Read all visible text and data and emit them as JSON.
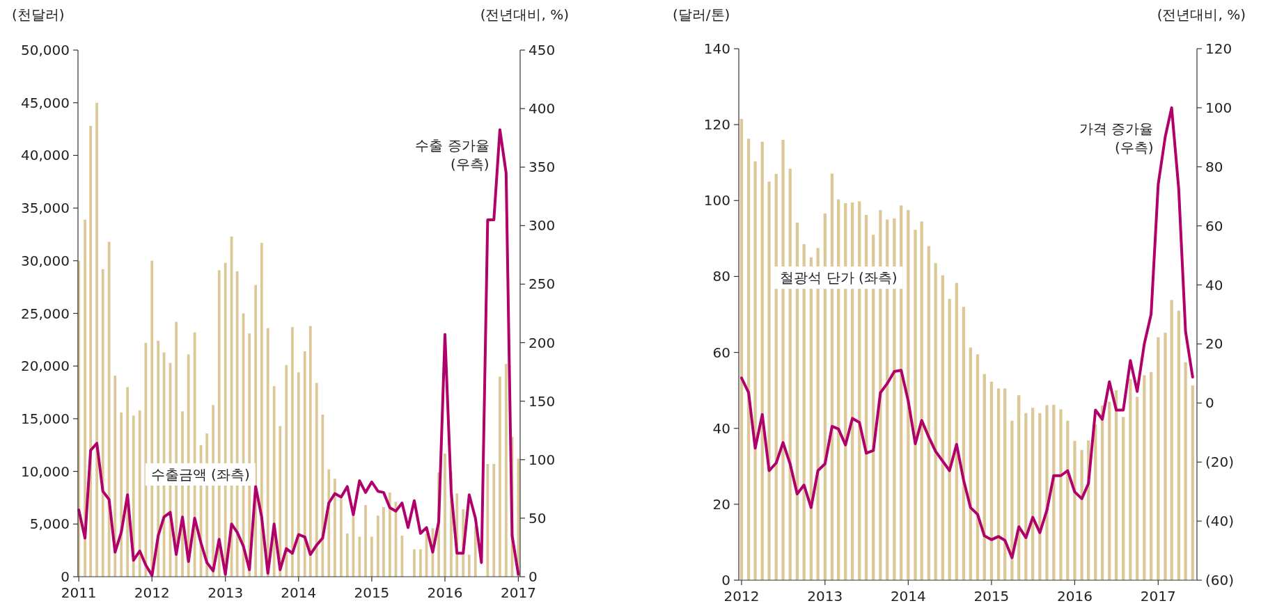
{
  "chart_data": [
    {
      "type": "bar",
      "ylabel": "(천달러)",
      "y2label": "(전년대비, %)",
      "x": [
        "2011-01",
        "2011-02",
        "2011-03",
        "2011-04",
        "2011-05",
        "2011-06",
        "2011-07",
        "2011-08",
        "2011-09",
        "2011-10",
        "2011-11",
        "2011-12",
        "2012-01",
        "2012-02",
        "2012-03",
        "2012-04",
        "2012-05",
        "2012-06",
        "2012-07",
        "2012-08",
        "2012-09",
        "2012-10",
        "2012-11",
        "2012-12",
        "2013-01",
        "2013-02",
        "2013-03",
        "2013-04",
        "2013-05",
        "2013-06",
        "2013-07",
        "2013-08",
        "2013-09",
        "2013-10",
        "2013-11",
        "2013-12",
        "2014-01",
        "2014-02",
        "2014-03",
        "2014-04",
        "2014-05",
        "2014-06",
        "2014-07",
        "2014-08",
        "2014-09",
        "2014-10",
        "2014-11",
        "2014-12",
        "2015-01",
        "2015-02",
        "2015-03",
        "2015-04",
        "2015-05",
        "2015-06",
        "2015-07",
        "2015-08",
        "2015-09",
        "2015-10",
        "2015-11",
        "2015-12",
        "2016-01",
        "2016-02",
        "2016-03",
        "2016-04",
        "2016-05",
        "2016-06",
        "2016-07",
        "2016-08",
        "2016-09",
        "2016-10",
        "2016-11",
        "2016-12",
        "2017-01"
      ],
      "xlim": [
        "2010-12-28",
        "2017-01-10"
      ],
      "xticks": [
        "2011",
        "2012",
        "2013",
        "2014",
        "2015",
        "2016",
        "2017"
      ],
      "ylim": [
        0,
        50000
      ],
      "yticks": [
        {
          "value": 0,
          "label": "0"
        },
        {
          "value": 5000,
          "label": "5,000"
        },
        {
          "value": 10000,
          "label": "10,000"
        },
        {
          "value": 15000,
          "label": "15,000"
        },
        {
          "value": 20000,
          "label": "20,000"
        },
        {
          "value": 25000,
          "label": "25,000"
        },
        {
          "value": 30000,
          "label": "30,000"
        },
        {
          "value": 35000,
          "label": "35,000"
        },
        {
          "value": 40000,
          "label": "40,000"
        },
        {
          "value": 45000,
          "label": "45,000"
        },
        {
          "value": 50000,
          "label": "50,000"
        }
      ],
      "y2lim": [
        0,
        450
      ],
      "y2ticks": [
        0,
        50,
        100,
        150,
        200,
        250,
        300,
        350,
        400,
        450
      ],
      "series": [
        {
          "name": "수출금액 (좌측)",
          "color": "#dcc796",
          "values": [
            30000,
            33900,
            42800,
            45000,
            29200,
            31800,
            19100,
            15600,
            18000,
            15300,
            15800,
            22200,
            30000,
            22400,
            21300,
            20300,
            24200,
            15700,
            21100,
            23200,
            12500,
            13600,
            16300,
            29100,
            29800,
            32300,
            29000,
            25000,
            23100,
            27700,
            31700,
            23600,
            18100,
            14300,
            20100,
            23700,
            19400,
            21400,
            23800,
            18400,
            15400,
            10200,
            9300,
            7400,
            4100,
            6000,
            3800,
            6800,
            3800,
            5800,
            6600,
            8000,
            7100,
            3900,
            null,
            2600,
            2600,
            4100,
            4600,
            9900,
            11700,
            10000,
            7900,
            6400,
            2100,
            4800,
            null,
            10700,
            10700,
            19000,
            20200,
            13300,
            11200
          ]
        },
        {
          "name": "수출 증가율\n(우측)",
          "type": "line",
          "axis": "y2",
          "color": "#b0006a",
          "values": [
            57,
            33,
            108,
            114,
            73,
            66,
            21,
            38,
            70,
            14,
            22,
            10,
            1,
            35,
            51,
            55,
            19,
            51,
            13,
            50,
            29,
            12,
            5,
            32,
            2,
            45,
            38,
            26,
            6,
            77,
            51,
            3,
            45,
            6,
            24,
            20,
            36,
            34,
            19,
            27,
            33,
            63,
            71,
            68,
            77,
            53,
            82,
            72,
            81,
            73,
            72,
            59,
            56,
            63,
            42,
            65,
            37,
            42,
            21,
            47,
            207,
            73,
            20,
            20,
            70,
            50,
            12,
            305,
            305,
            382,
            345,
            35,
            2
          ]
        }
      ]
    },
    {
      "type": "bar",
      "ylabel": "(달러/톤)",
      "y2label": "(전년대비, %)",
      "x": [
        "2012-01",
        "2012-02",
        "2012-03",
        "2012-04",
        "2012-05",
        "2012-06",
        "2012-07",
        "2012-08",
        "2012-09",
        "2012-10",
        "2012-11",
        "2012-12",
        "2013-01",
        "2013-02",
        "2013-03",
        "2013-04",
        "2013-05",
        "2013-06",
        "2013-07",
        "2013-08",
        "2013-09",
        "2013-10",
        "2013-11",
        "2013-12",
        "2014-01",
        "2014-02",
        "2014-03",
        "2014-04",
        "2014-05",
        "2014-06",
        "2014-07",
        "2014-08",
        "2014-09",
        "2014-10",
        "2014-11",
        "2014-12",
        "2015-01",
        "2015-02",
        "2015-03",
        "2015-04",
        "2015-05",
        "2015-06",
        "2015-07",
        "2015-08",
        "2015-09",
        "2015-10",
        "2015-11",
        "2015-12",
        "2016-01",
        "2016-02",
        "2016-03",
        "2016-04",
        "2016-05",
        "2016-06",
        "2016-07",
        "2016-08",
        "2016-09",
        "2016-10",
        "2016-11",
        "2016-12",
        "2017-01",
        "2017-02",
        "2017-03",
        "2017-04",
        "2017-05",
        "2017-06"
      ],
      "xlim": [
        "2011-12-20",
        "2017-06-20"
      ],
      "xticks": [
        "2012",
        "2013",
        "2014",
        "2015",
        "2016",
        "2017"
      ],
      "ylim": [
        0,
        140
      ],
      "yticks": [
        0,
        20,
        40,
        60,
        80,
        100,
        120,
        140
      ],
      "y2lim": [
        -60,
        120
      ],
      "y2ticks": [
        {
          "value": -60,
          "label": "(60)"
        },
        {
          "value": -40,
          "label": "(40)"
        },
        {
          "value": -20,
          "label": "(20)"
        },
        0,
        20,
        40,
        60,
        80,
        100,
        120
      ],
      "series": [
        {
          "name": "철광석 단가 (좌측)",
          "color": "#dcc796",
          "values": [
            121.5,
            116.3,
            110.3,
            115.5,
            105,
            107,
            116,
            108.4,
            94.2,
            88.5,
            85,
            87.5,
            96.6,
            107.1,
            100.3,
            99.3,
            99.5,
            99.8,
            96.2,
            91,
            97.5,
            95,
            95.3,
            98.7,
            97.5,
            92.3,
            94.5,
            88,
            83.5,
            80.3,
            74.1,
            78.3,
            72,
            61.3,
            59.5,
            54.3,
            52.3,
            50.5,
            50.5,
            42,
            48.7,
            44,
            45.4,
            44,
            46.1,
            46.2,
            45,
            42,
            36.7,
            34.3,
            36.8,
            41,
            46,
            47,
            50,
            43,
            53,
            48.3,
            54,
            54.8,
            64,
            65.2,
            73.8,
            71,
            57.4,
            51.3
          ]
        },
        {
          "name": "가격 증가율\n(우측)",
          "type": "line",
          "axis": "y2",
          "color": "#b0006a",
          "values": [
            8.5,
            3.5,
            -15.3,
            -3.9,
            -22.9,
            -20.3,
            -13.4,
            -20.6,
            -30.8,
            -27.8,
            -35.4,
            -22.9,
            -20.6,
            -7.9,
            -8.8,
            -14.2,
            -5.2,
            -6.6,
            -17,
            -16.1,
            3.5,
            6.6,
            10.7,
            11.1,
            0.7,
            -13.8,
            -5.9,
            -11.5,
            -16.4,
            -19.7,
            -22.9,
            -14,
            -26.2,
            -35.4,
            -37.7,
            -45,
            -46.3,
            -45.2,
            -46.5,
            -52.4,
            -41.9,
            -45.6,
            -38.7,
            -43.9,
            -36.3,
            -24.6,
            -24.6,
            -22.9,
            -30.1,
            -32.4,
            -27.3,
            -2.4,
            -5.5,
            7.2,
            -2.4,
            -2.4,
            14.4,
            3.9,
            20,
            30.1,
            74,
            90.2,
            100,
            72.5,
            24.2,
            8.8
          ]
        }
      ]
    }
  ]
}
